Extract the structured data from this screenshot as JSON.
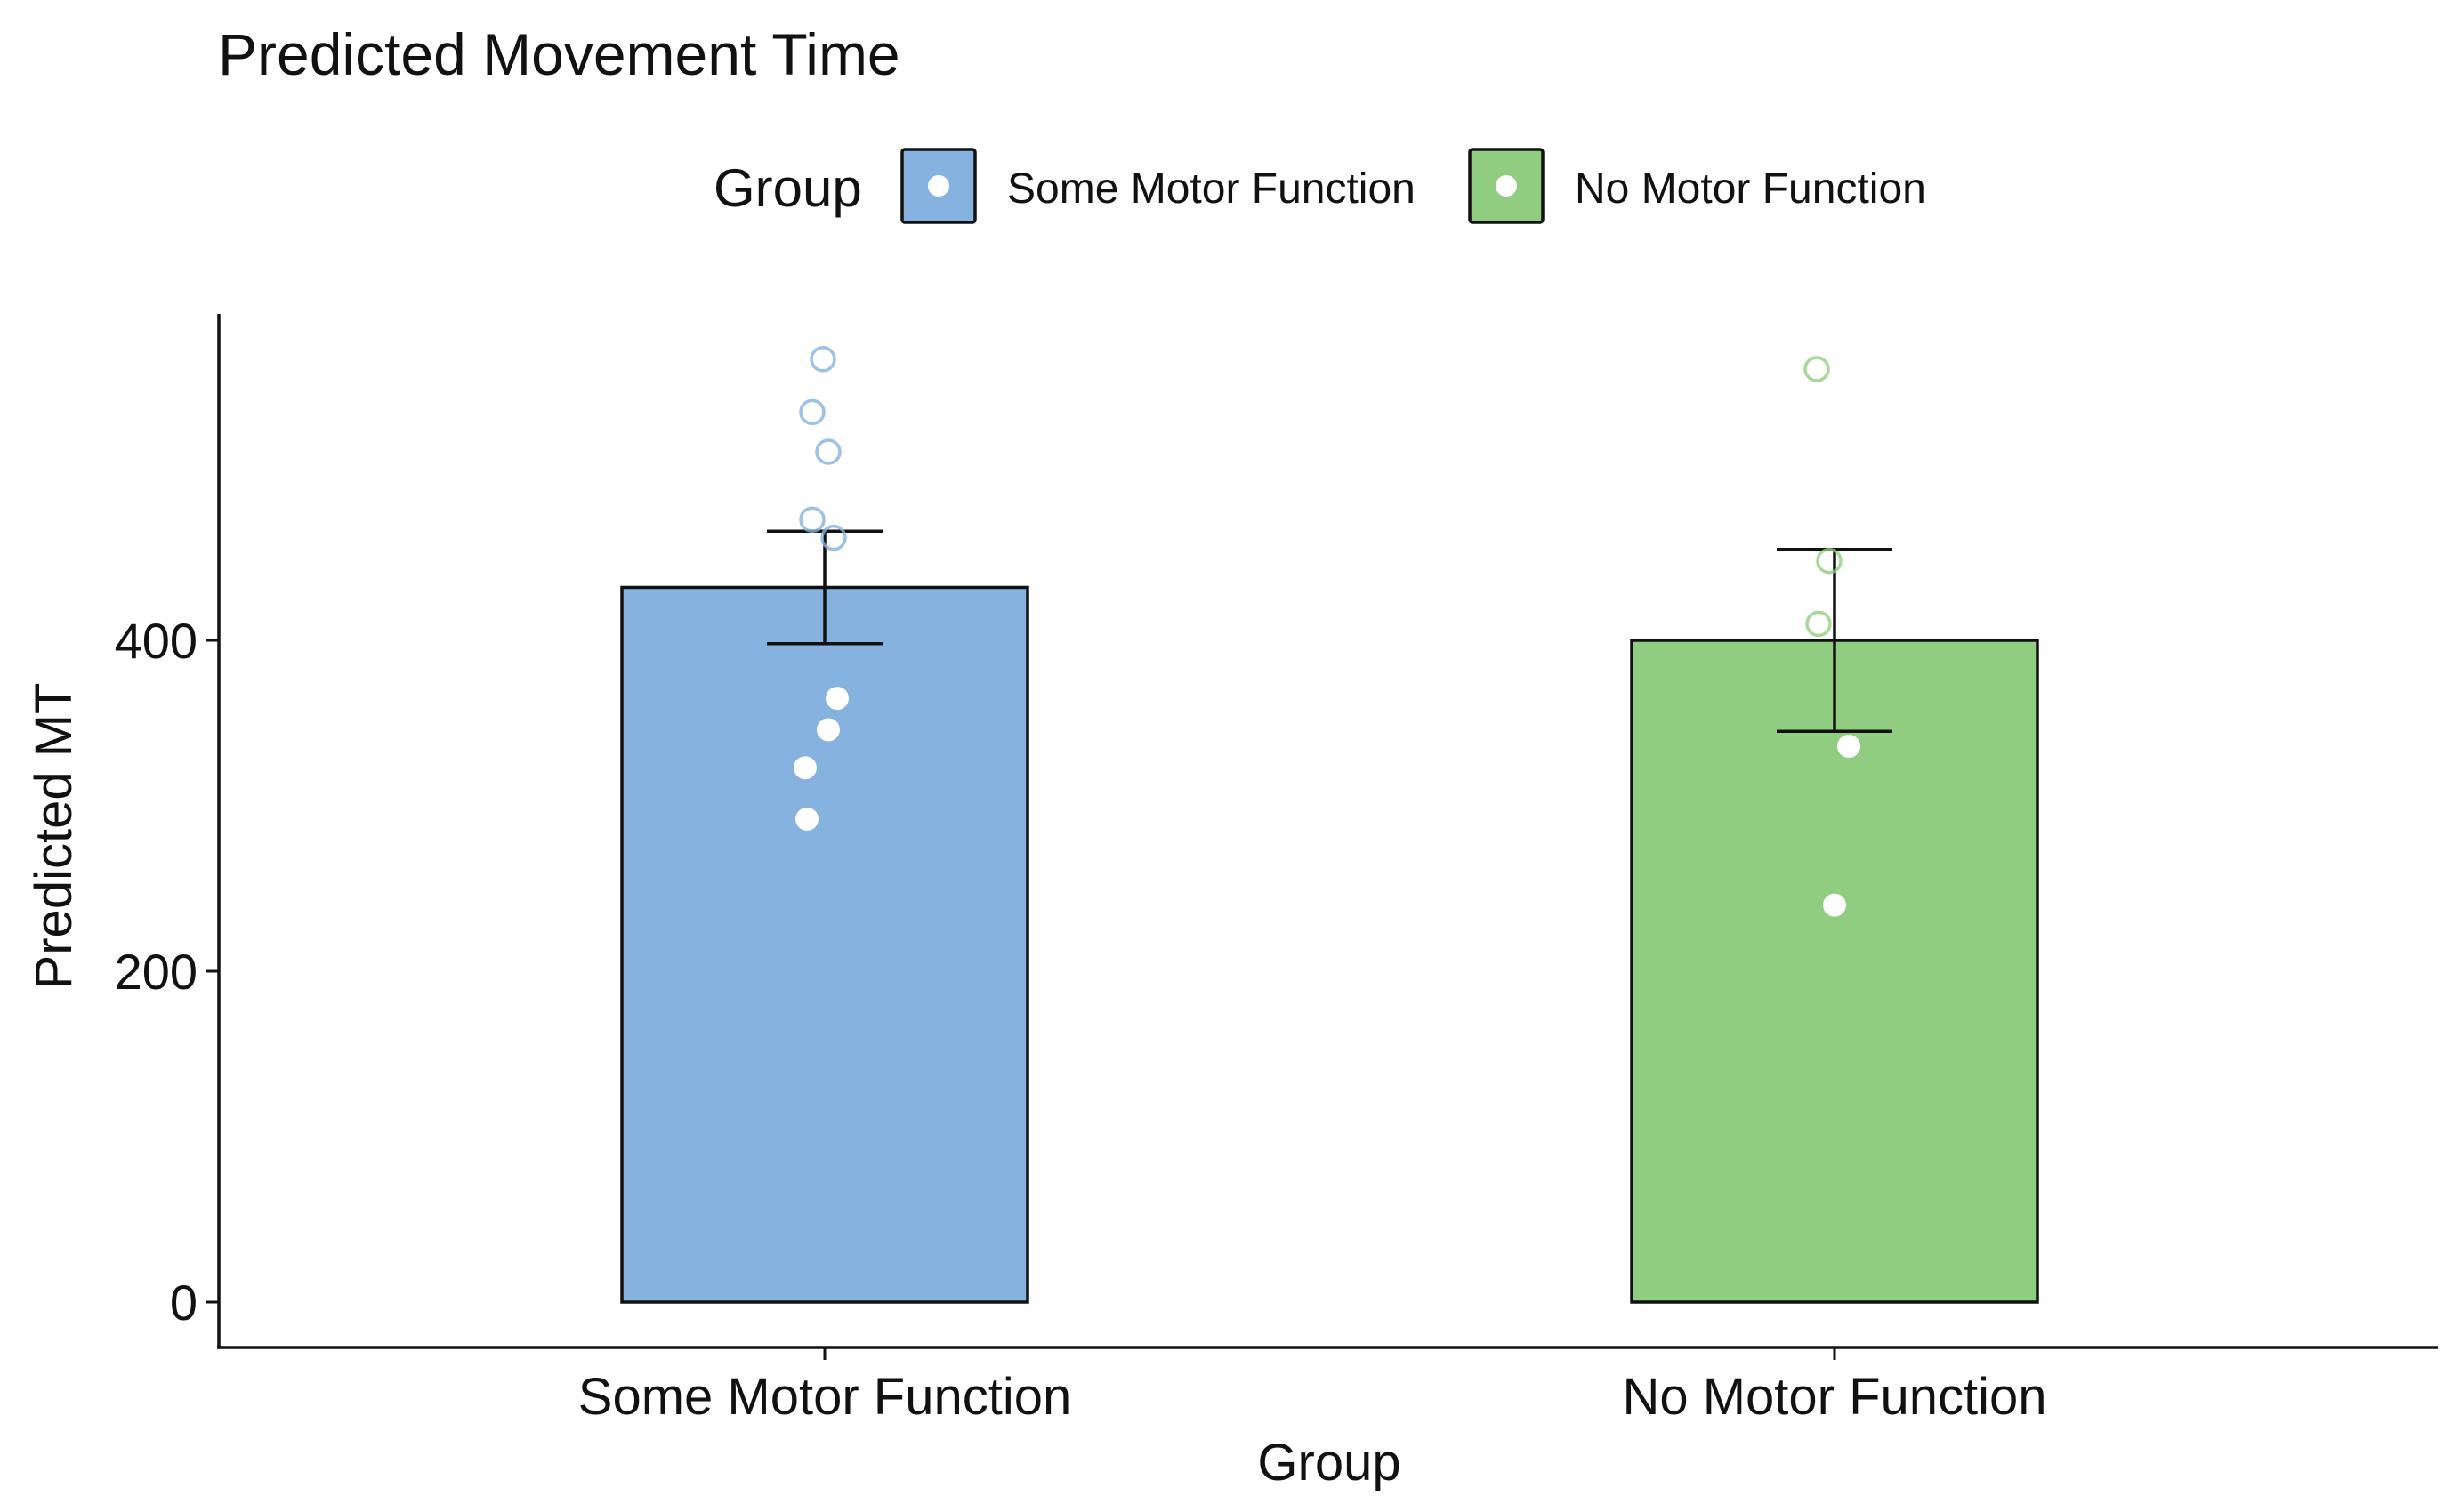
{
  "chart_data": {
    "type": "bar",
    "title": "Predicted Movement Time",
    "xlabel": "Group",
    "ylabel": "Predicted MT",
    "ylim": [
      0,
      620
    ],
    "yticks": [
      0,
      200,
      400
    ],
    "grid": false,
    "legend": {
      "title": "Group",
      "position": "top",
      "entries": [
        "Some Motor Function",
        "No Motor Function"
      ]
    },
    "categories": [
      "Some Motor Function",
      "No Motor Function"
    ],
    "values": [
      432,
      400
    ],
    "error_bars": [
      {
        "low": 398,
        "high": 466
      },
      {
        "low": 345,
        "high": 455
      }
    ],
    "colors": [
      "#85b2de",
      "#91cd80"
    ],
    "points": [
      {
        "group": "Some Motor Function",
        "values": [
          570,
          538,
          514,
          473,
          462,
          365,
          346,
          323,
          292
        ]
      },
      {
        "group": "No Motor Function",
        "values": [
          564,
          448,
          410,
          336,
          240
        ]
      }
    ]
  }
}
